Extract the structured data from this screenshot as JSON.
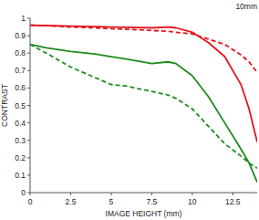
{
  "chart_data": {
    "type": "line",
    "title": "10mm",
    "x_label": "IMAGE HEIGHT (mm)",
    "y_label": "CONTRAST",
    "x": [
      0,
      1,
      2.5,
      4,
      5,
      6,
      7.5,
      8.5,
      9,
      10,
      11,
      12,
      13,
      13.5,
      14
    ],
    "series": [
      {
        "color": "#e3141b",
        "line_style": "solid",
        "values": [
          0.96,
          0.958,
          0.955,
          0.952,
          0.95,
          0.948,
          0.945,
          0.95,
          0.945,
          0.92,
          0.86,
          0.78,
          0.62,
          0.48,
          0.29
        ]
      },
      {
        "color": "#e3141b",
        "line_style": "dashed",
        "values": [
          0.96,
          0.958,
          0.95,
          0.945,
          0.94,
          0.937,
          0.93,
          0.925,
          0.92,
          0.91,
          0.88,
          0.85,
          0.79,
          0.75,
          0.69
        ]
      },
      {
        "color": "#1d8c1d",
        "line_style": "solid",
        "values": [
          0.85,
          0.83,
          0.81,
          0.795,
          0.78,
          0.765,
          0.74,
          0.75,
          0.74,
          0.67,
          0.55,
          0.4,
          0.25,
          0.17,
          0.06
        ]
      },
      {
        "color": "#1d8c1d",
        "line_style": "dashed",
        "values": [
          0.85,
          0.8,
          0.72,
          0.66,
          0.62,
          0.61,
          0.58,
          0.56,
          0.54,
          0.48,
          0.38,
          0.28,
          0.21,
          0.17,
          0.14
        ]
      }
    ],
    "xlim": [
      0,
      14
    ],
    "xticks": [
      0,
      2.5,
      5,
      7.5,
      10,
      12.5
    ],
    "ylim": [
      0,
      1
    ],
    "yticks": [
      0,
      0.1,
      0.2,
      0.3,
      0.4,
      0.5,
      0.6,
      0.7,
      0.8,
      0.9,
      1
    ],
    "grid": false
  }
}
